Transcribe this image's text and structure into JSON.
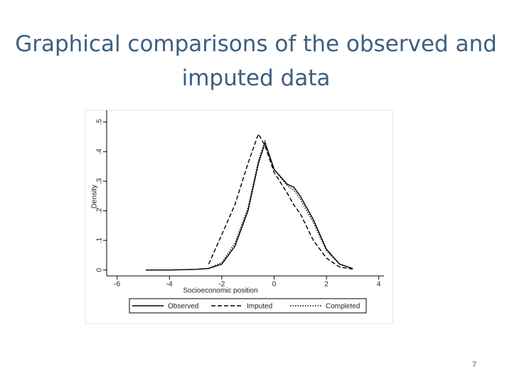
{
  "slide": {
    "title": "Graphical comparisons of the observed and imputed data",
    "page_number": "7"
  },
  "chart_data": {
    "type": "line",
    "x_label": "Socioeconomic position",
    "y_label": "Density",
    "x": [
      -4.9,
      -4,
      -3,
      -2.5,
      -2,
      -1.5,
      -1,
      -0.6,
      -0.35,
      0,
      0.5,
      0.75,
      1,
      1.5,
      2,
      2.5,
      3
    ],
    "series": [
      {
        "name": "Observed",
        "color": "#000000",
        "dash": "solid",
        "values": [
          0,
          0,
          0.002,
          0.005,
          0.02,
          0.08,
          0.2,
          0.36,
          0.43,
          0.34,
          0.29,
          0.28,
          0.25,
          0.17,
          0.07,
          0.02,
          0.005
        ]
      },
      {
        "name": "Imputed",
        "color": "#000000",
        "dash": "dashed",
        "values": [
          null,
          null,
          null,
          0.02,
          0.12,
          0.22,
          0.36,
          0.46,
          0.42,
          0.33,
          0.26,
          0.22,
          0.19,
          0.1,
          0.04,
          0.01,
          0.003
        ]
      },
      {
        "name": "Completed",
        "color": "#000000",
        "dash": "dotted",
        "values": [
          0,
          0,
          0.002,
          0.006,
          0.025,
          0.09,
          0.21,
          0.37,
          0.435,
          0.34,
          0.285,
          0.27,
          0.24,
          0.16,
          0.065,
          0.02,
          0.005
        ]
      }
    ],
    "xlim": [
      -6.4,
      4.2
    ],
    "xticks": [
      -6,
      -4,
      -2,
      0,
      2,
      4
    ],
    "ylim": [
      -0.02,
      0.54
    ],
    "yticks": [
      0,
      {
        "value": 0.1,
        "label": ".1"
      },
      {
        "value": 0.2,
        "label": ".2"
      },
      {
        "value": 0.3,
        "label": ".3"
      },
      {
        "value": 0.4,
        "label": ".4"
      },
      {
        "value": 0.5,
        "label": ".5"
      }
    ],
    "legend": "bottom"
  }
}
